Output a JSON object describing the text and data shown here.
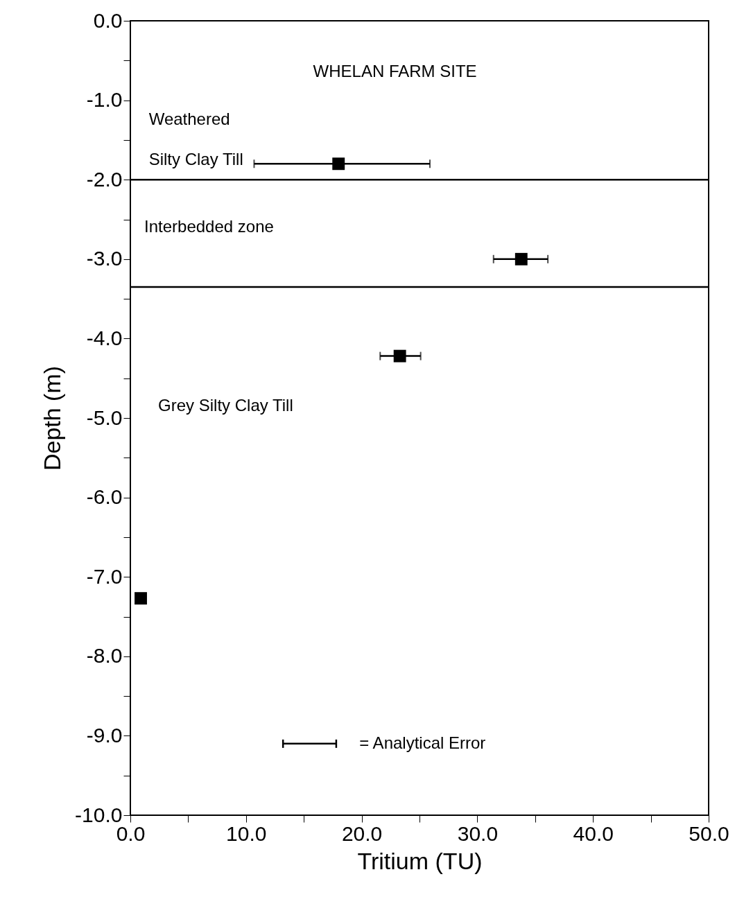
{
  "chart_data": {
    "type": "scatter",
    "xlabel": "Tritium (TU)",
    "ylabel": "Depth (m)",
    "x": [
      18.0,
      33.8,
      23.3,
      0.9
    ],
    "values": [
      -1.8,
      -3.0,
      -4.22,
      -7.27
    ],
    "xerrors": [
      [
        10.7,
        25.9
      ],
      [
        31.4,
        36.1
      ],
      [
        21.6,
        25.1
      ],
      null
    ],
    "color": "#000000",
    "marker": "square",
    "grid": false,
    "xlim": [
      0,
      50
    ],
    "ylim": [
      -10,
      0
    ],
    "xticks": [
      {
        "value": 0,
        "label": "0.0"
      },
      {
        "value": 5,
        "label": null
      },
      {
        "value": 10,
        "label": "10.0"
      },
      {
        "value": 15,
        "label": null
      },
      {
        "value": 20,
        "label": "20.0"
      },
      {
        "value": 25,
        "label": null
      },
      {
        "value": 30,
        "label": "30.0"
      },
      {
        "value": 35,
        "label": null
      },
      {
        "value": 40,
        "label": "40.0"
      },
      {
        "value": 45,
        "label": null
      },
      {
        "value": 50,
        "label": "50.0"
      }
    ],
    "yticks": [
      {
        "value": 0,
        "label": "0.0"
      },
      {
        "value": -0.5,
        "label": null
      },
      {
        "value": -1,
        "label": "-1.0"
      },
      {
        "value": -1.5,
        "label": null
      },
      {
        "value": -2,
        "label": "-2.0"
      },
      {
        "value": -2.5,
        "label": null
      },
      {
        "value": -3,
        "label": "-3.0"
      },
      {
        "value": -3.5,
        "label": null
      },
      {
        "value": -4,
        "label": "-4.0"
      },
      {
        "value": -4.5,
        "label": null
      },
      {
        "value": -5,
        "label": "-5.0"
      },
      {
        "value": -5.5,
        "label": null
      },
      {
        "value": -6,
        "label": "-6.0"
      },
      {
        "value": -6.5,
        "label": null
      },
      {
        "value": -7,
        "label": "-7.0"
      },
      {
        "value": -7.5,
        "label": null
      },
      {
        "value": -8,
        "label": "-8.0"
      },
      {
        "value": -8.5,
        "label": null
      },
      {
        "value": -9,
        "label": "-9.0"
      },
      {
        "value": -9.5,
        "label": null
      },
      {
        "value": -10,
        "label": "-10.0"
      }
    ],
    "ref_lines": [
      {
        "axis": "y",
        "value": -2.0,
        "color": "#000000",
        "line_style": "solid"
      },
      {
        "axis": "y",
        "value": -3.35,
        "color": "#000000",
        "line_style": "solid"
      }
    ],
    "annotations": [
      "WHELAN FARM SITE",
      "Weathered",
      "Silty Clay Till",
      "Interbedded zone",
      "Grey Silty Clay Till",
      "= Analytical Error"
    ]
  }
}
